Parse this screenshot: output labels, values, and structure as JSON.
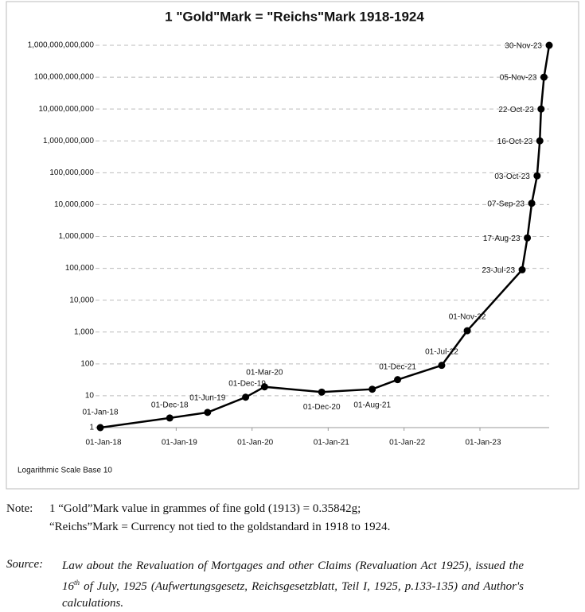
{
  "chart_data": {
    "type": "line",
    "title": "1 \"Gold\"Mark = \"Reichs\"Mark 1918-1924",
    "annotation": "Logarithmic Scale Base 10",
    "x": [
      "01-Jan-18",
      "01-Dec-18",
      "01-Jun-19",
      "01-Dec-19",
      "01-Mar-20",
      "01-Dec-20",
      "01-Aug-21",
      "01-Dec-21",
      "01-Jul-22",
      "01-Nov-22",
      "23-Jul-23",
      "17-Aug-23",
      "07-Sep-23",
      "03-Oct-23",
      "16-Oct-23",
      "22-Oct-23",
      "05-Nov-23",
      "30-Nov-23"
    ],
    "values": [
      1,
      2,
      3,
      9,
      19,
      13,
      16,
      32,
      90,
      1100,
      90000,
      900000,
      11000000,
      80000000,
      1000000000,
      10000000000,
      100000000000,
      1000000000000
    ],
    "color": "#000000",
    "xlim": [
      "01-Jan-18",
      "30-Nov-23"
    ],
    "xticks": [
      "01-Jan-18",
      "01-Jan-19",
      "01-Jan-20",
      "01-Jan-21",
      "01-Jan-22",
      "01-Jan-23"
    ],
    "ylim": [
      1,
      1000000000000
    ],
    "yticks": [
      1,
      10,
      100,
      {
        "value": 1000,
        "label": "1,000"
      },
      {
        "value": 10000,
        "label": "10,000"
      },
      {
        "value": 100000,
        "label": "100,000"
      },
      {
        "value": 1000000,
        "label": "1,000,000"
      },
      {
        "value": 10000000,
        "label": "10,000,000"
      },
      {
        "value": 100000000,
        "label": "100,000,000"
      },
      {
        "value": 1000000000,
        "label": "1,000,000,000"
      },
      {
        "value": 10000000000,
        "label": "10,000,000,000"
      },
      {
        "value": 100000000000,
        "label": "100,000,000,000"
      },
      {
        "value": 1000000000000,
        "label": "1,000,000,000,000"
      }
    ],
    "log_scale": true,
    "grid": true
  },
  "footer": {
    "note_label": "Note:",
    "note_lines": [
      "1 “Gold”Mark value in grammes of fine gold (1913) = 0.35842g;",
      "“Reichs”Mark = Currency not tied to the goldstandard in 1918 to 1924."
    ],
    "source_label": "Source:",
    "source_before": "Law about the Revaluation of Mortgages and other Claims (Revaluation Act 1925), issued the 16",
    "source_sup": "th",
    "source_after": " of July, 1925 (Aufwertungsgesetz, Reichsgesetzblatt, Teil I, 1925, p.133-135) and Author's calculations."
  }
}
